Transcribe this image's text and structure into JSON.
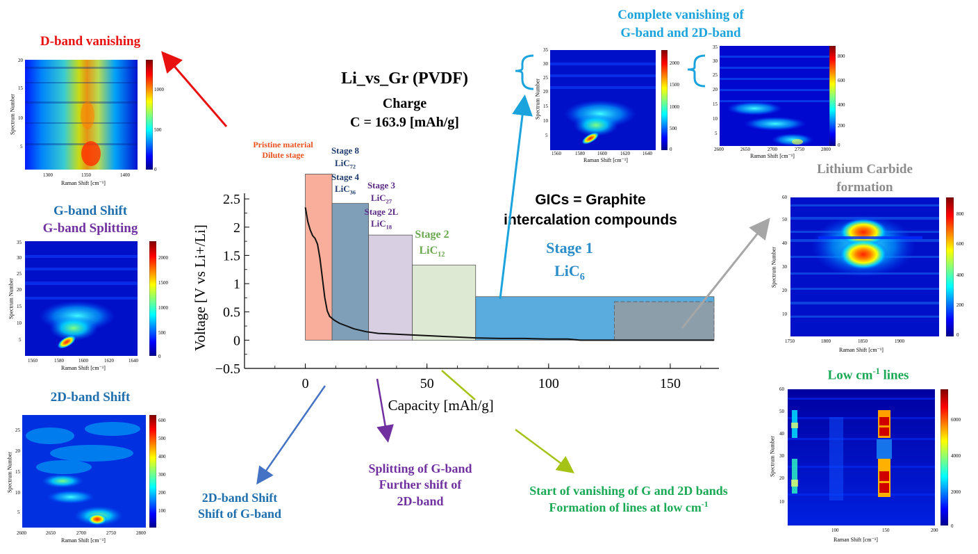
{
  "main_title": "Li_vs_Gr (PVDF)",
  "subtitle_1": "Charge",
  "subtitle_2": "C = 163.9 [mAh/g]",
  "gic_label_1": "GICs = Graphite",
  "gic_label_2": "intercalation compounds",
  "stages": {
    "pristine_1": "Pristine material",
    "pristine_2": "Dilute stage",
    "s8_1": "Stage 8",
    "s8_2": "LiC",
    "s8_2_sub": "72",
    "s8_3": "Stage 4",
    "s8_4": "LiC",
    "s8_4_sub": "36",
    "s3_1": "Stage 3",
    "s3_2": "LiC",
    "s3_2_sub": "27",
    "s3_3": "Stage 2L",
    "s3_4": "LiC",
    "s3_4_sub": "18",
    "s2_1": "Stage 2",
    "s2_2": "LiC",
    "s2_2_sub": "12",
    "s1_1": "Stage 1",
    "s1_2": "LiC",
    "s1_2_sub": "6"
  },
  "annotations": {
    "d_band": "D-band vanishing",
    "g_shift": "G-band Shift",
    "g_split": "G-band Splitting",
    "d2_shift": "2D-band Shift",
    "complete_1": "Complete vanishing of",
    "complete_2": "G-band and 2D-band",
    "li_carbide_1": "Lithium Carbide",
    "li_carbide_2": "formation",
    "low_cm": "Low cm",
    "low_cm_sup": "-1",
    "low_cm_tail": " lines",
    "bottom_a1": "2D-band Shift",
    "bottom_a2": "Shift of G-band",
    "bottom_b1": "Splitting of G-band",
    "bottom_b2": "Further shift of",
    "bottom_b3": "2D-band",
    "bottom_c1": "Start of vanishing of G and 2D bands",
    "bottom_c2": "Formation of lines at low cm",
    "bottom_c2_sup": "-1"
  },
  "colors": {
    "red": "#e8110f",
    "blue_title": "#1f6fae",
    "purple": "#7030a0",
    "cyan": "#1aa3dc",
    "gray": "#8c8c8c",
    "green": "#1aaa55",
    "orange": "#e8501e",
    "stage2_green": "#6aa84f"
  },
  "chart_data": {
    "type": "line",
    "xlabel": "Capacity [mAh/g]",
    "ylabel": "Voltage [V vs Li+/Li]",
    "xlim": [
      -25,
      170
    ],
    "ylim": [
      -0.5,
      2.6
    ],
    "xticks": [
      "0",
      "50",
      "100",
      "150"
    ],
    "yticks": [
      "−0.5",
      "0",
      "0.5",
      "1",
      "1.5",
      "2",
      "2.5"
    ],
    "stage_bars": [
      {
        "x0": 0,
        "x1": 11,
        "top": 2.94,
        "color": "#f9ad9b"
      },
      {
        "x0": 11,
        "x1": 26,
        "top": 2.42,
        "color": "#7f9fb9"
      },
      {
        "x0": 26,
        "x1": 44,
        "top": 1.86,
        "color": "#d8d0e2"
      },
      {
        "x0": 44,
        "x1": 70,
        "top": 1.33,
        "color": "#dde9d2"
      },
      {
        "x0": 70,
        "x1": 168,
        "top": 0.77,
        "color": "#5aabde"
      },
      {
        "x0": 127,
        "x1": 168,
        "top": 0.68,
        "color": "#8f9ea8"
      }
    ],
    "curve_x": [
      0,
      1,
      2,
      3,
      4,
      5,
      6,
      7,
      8,
      9,
      10,
      12,
      14,
      17,
      20,
      25,
      30,
      35,
      40,
      50,
      60,
      70,
      80,
      90,
      100,
      108,
      113,
      120,
      130,
      140,
      150,
      160,
      168
    ],
    "curve_y": [
      2.35,
      2.1,
      1.95,
      1.85,
      1.8,
      1.7,
      1.45,
      1.1,
      0.75,
      0.52,
      0.42,
      0.35,
      0.3,
      0.25,
      0.2,
      0.15,
      0.12,
      0.11,
      0.1,
      0.08,
      0.06,
      0.04,
      0.03,
      0.03,
      0.02,
      0.02,
      0.0,
      0.0,
      0.0,
      0.0,
      0.0,
      0.0,
      0.0
    ]
  },
  "heatmaps": {
    "dband": {
      "xlabel": "Raman Shift [cm⁻¹]",
      "ylabel": "Spectrum Number",
      "xticks": [
        "1300",
        "1350",
        "1400"
      ],
      "yticks": [
        "5",
        "10",
        "15",
        "20"
      ],
      "cbticks": [
        "0",
        "500",
        "1000"
      ]
    },
    "gband": {
      "xlabel": "Raman Shift [cm⁻¹]",
      "ylabel": "Spectrum Number",
      "xticks": [
        "1560",
        "1580",
        "1600",
        "1620",
        "1640"
      ],
      "yticks": [
        "5",
        "10",
        "15",
        "20",
        "25",
        "30",
        "35"
      ],
      "cbticks": [
        "0",
        "500",
        "1000",
        "1500",
        "2000"
      ]
    },
    "d2band": {
      "xlabel": "Raman Shift [cm⁻¹]",
      "ylabel": "Spectrum Number",
      "xticks": [
        "2600",
        "2650",
        "2700",
        "2750",
        "2800"
      ],
      "yticks": [
        "5",
        "10",
        "15",
        "20",
        "25"
      ],
      "cbticks": [
        "100",
        "200",
        "300",
        "400",
        "500",
        "600"
      ]
    },
    "top_g": {
      "xlabel": "Raman Shift [cm⁻¹]",
      "ylabel": "Spectrum Number",
      "xticks": [
        "1560",
        "1580",
        "1600",
        "1620",
        "1640"
      ],
      "yticks": [
        "5",
        "10",
        "15",
        "20",
        "25",
        "30",
        "35"
      ],
      "cbticks": [
        "0",
        "500",
        "1000",
        "1500",
        "2000"
      ]
    },
    "top_2d": {
      "xlabel": "Raman Shift [cm⁻¹]",
      "ylabel": "Spectrum Number",
      "xticks": [
        "2600",
        "2650",
        "2700",
        "2750",
        "2800"
      ],
      "yticks": [
        "5",
        "10",
        "15",
        "20",
        "25",
        "30",
        "35"
      ],
      "cbticks": [
        "0",
        "200",
        "400",
        "600",
        "800"
      ]
    },
    "carbide": {
      "xlabel": "Raman Shift [cm⁻¹]",
      "ylabel": "Spectrum Number",
      "xticks": [
        "1750",
        "1800",
        "1850",
        "1900"
      ],
      "yticks": [
        "10",
        "20",
        "30",
        "40",
        "50",
        "60"
      ],
      "cbticks": [
        "0",
        "200",
        "400",
        "600",
        "800"
      ]
    },
    "lowcm": {
      "xlabel": "Raman Shift [cm⁻¹]",
      "ylabel": "Spectrum Number",
      "xticks": [
        "100",
        "150",
        "200"
      ],
      "yticks": [
        "10",
        "20",
        "30",
        "40",
        "50",
        "60"
      ],
      "cbticks": [
        "0",
        "2000",
        "4000",
        "6000"
      ]
    }
  }
}
